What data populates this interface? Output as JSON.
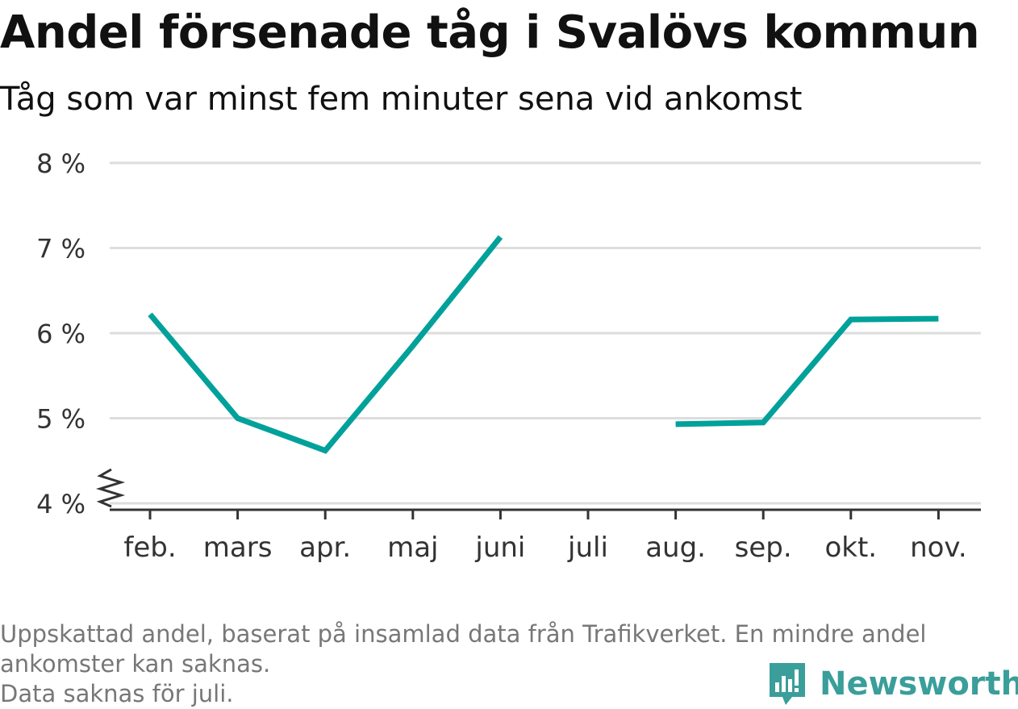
{
  "chart_data": {
    "type": "line",
    "title": "Andel försenade tåg i Svalövs kommun",
    "subtitle": "Tåg som var minst fem minuter sena vid ankomst",
    "categories": [
      "feb.",
      "mars",
      "apr.",
      "maj",
      "juni",
      "juli",
      "aug.",
      "sep.",
      "okt.",
      "nov."
    ],
    "series": [
      {
        "values": [
          6.22,
          5.0,
          4.62,
          5.85,
          7.13,
          null,
          4.93,
          4.95,
          6.16,
          6.17
        ],
        "color": "#00a19a"
      }
    ],
    "ylim": [
      4,
      8
    ],
    "yticks": [
      4,
      5,
      6,
      7,
      8
    ],
    "ytick_labels": [
      "4 %",
      "5 %",
      "6 %",
      "7 %",
      "8 %"
    ],
    "y_axis_break": true,
    "grid": true,
    "xlabel": "",
    "ylabel": ""
  },
  "footer": {
    "note_line1": "Uppskattad andel, baserat på insamlad data från Trafikverket. En mindre andel",
    "note_line2": "ankomster kan saknas.",
    "note_line3": "Data saknas för juli."
  },
  "brand": {
    "name": "Newsworthy",
    "icon": "newsworthy-logo-icon",
    "color": "#3a9e9a"
  }
}
